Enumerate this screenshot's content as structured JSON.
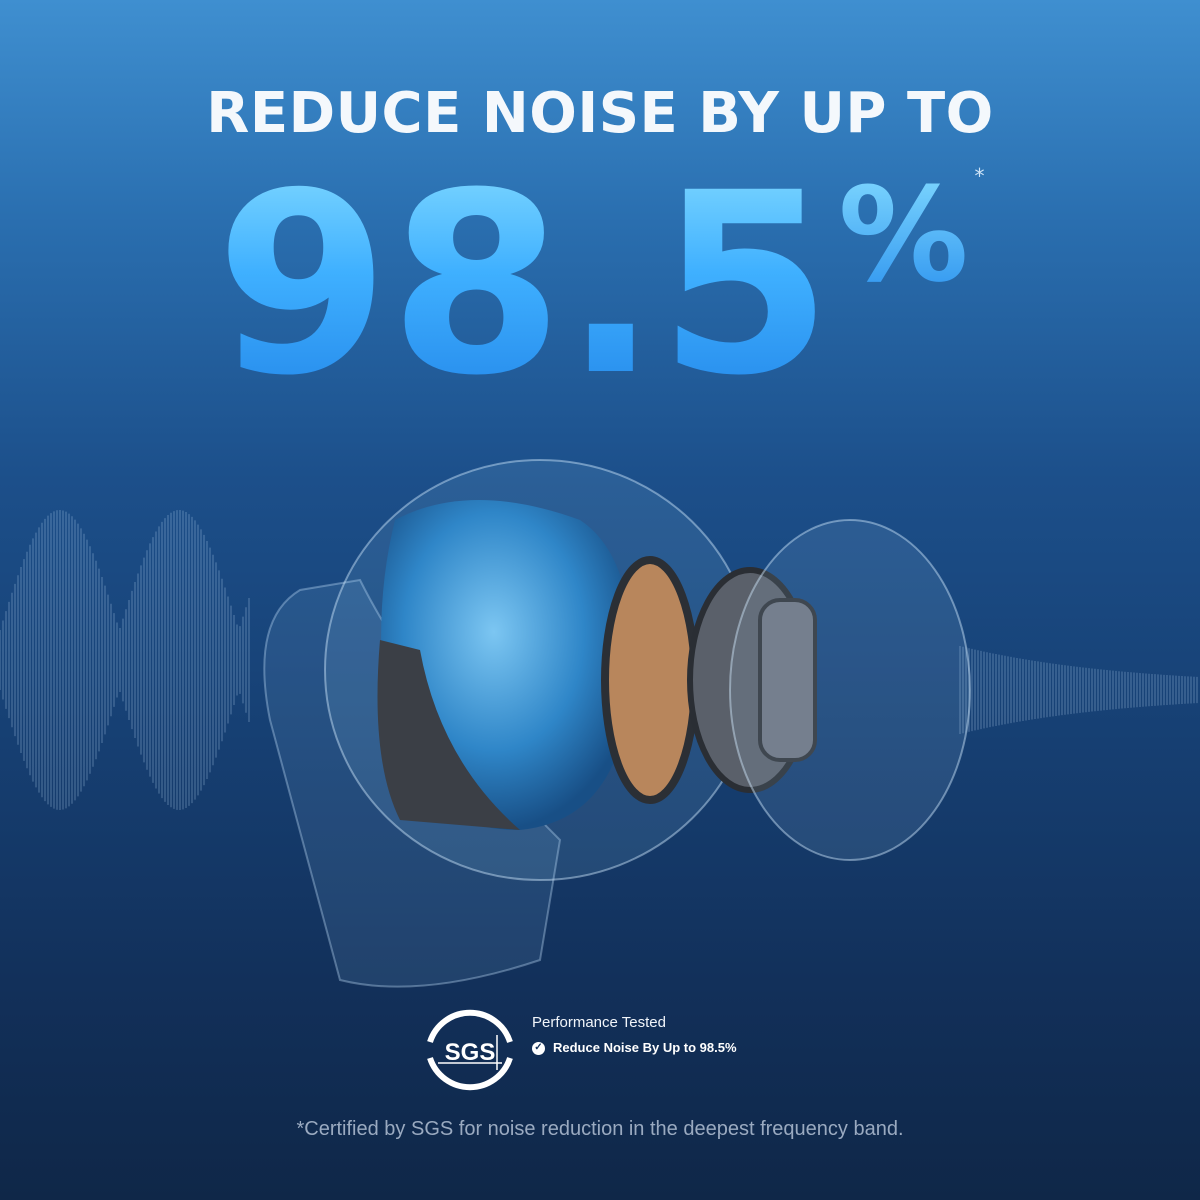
{
  "headline": "REDUCE NOISE BY UP TO",
  "big_number": "98.5",
  "percent_sign": "%",
  "asterisk": "*",
  "badge": {
    "logo_text": "SGS",
    "title": "Performance Tested",
    "check_icon": "check-circle-icon",
    "claim": "Reduce Noise By Up to 98.5%"
  },
  "footnote": "*Certified by SGS for noise reduction in the deepest frequency band.",
  "colors": {
    "accent": "#3fb0ff",
    "background_top": "#3f8fd0",
    "background_bottom": "#0f2748"
  }
}
